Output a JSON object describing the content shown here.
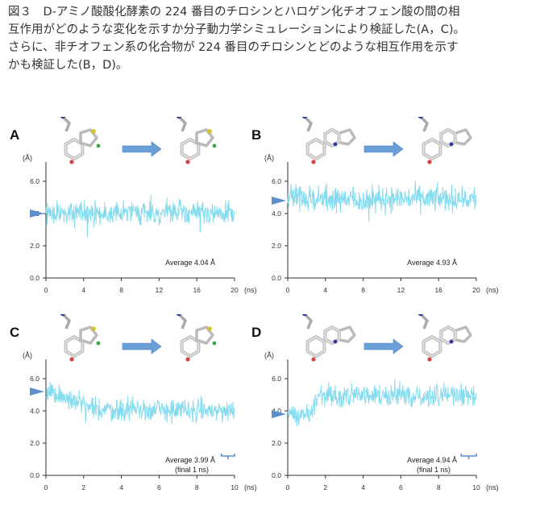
{
  "caption": {
    "lines": [
      "図３　D-アミノ酸酸化酵素の 224 番目のチロシンとハロゲン化チオフェン酸の間の相",
      "互作用がどのような変化を示すか分子動力学シミュレーションにより検証した(A，C)。",
      "さらに、非チオフェン系の化合物が 224 番目のチロシンとどのような相互作用を示す",
      "かも検証した(B，D)。"
    ]
  },
  "colors": {
    "trace": "#86dcef",
    "arrow": "#6a9fd8",
    "axis": "#333333",
    "marker": "#5b8fd0"
  },
  "chart_data": [
    {
      "type": "line",
      "panel": "A",
      "ylabel": "(Å)",
      "xlabel": "(ns)",
      "xlim": [
        0,
        20
      ],
      "ylim": [
        0,
        7.5
      ],
      "xticks": [
        "0",
        "4",
        "8",
        "12",
        "16",
        "20"
      ],
      "yticks": [
        "0.0",
        "2.0",
        "4.0",
        "6.0"
      ],
      "series": [
        {
          "mean": 4.04,
          "noise": 0.55
        }
      ],
      "marker_y": 4.0,
      "annotation": [
        "Average 4.04 Å"
      ]
    },
    {
      "type": "line",
      "panel": "B",
      "ylabel": "(Å)",
      "xlabel": "(ns)",
      "xlim": [
        0,
        20
      ],
      "ylim": [
        0,
        7.5
      ],
      "xticks": [
        "0",
        "4",
        "8",
        "12",
        "16",
        "20"
      ],
      "yticks": [
        "0.0",
        "2.0",
        "4.0",
        "6.0"
      ],
      "series": [
        {
          "mean": 4.93,
          "noise": 0.6
        }
      ],
      "marker_y": 4.8,
      "annotation": [
        "Average 4.93 Å"
      ]
    },
    {
      "type": "line",
      "panel": "C",
      "ylabel": "(Å)",
      "xlabel": "(ns)",
      "xlim": [
        0,
        10
      ],
      "ylim": [
        0,
        7.5
      ],
      "xticks": [
        "0",
        "2",
        "4",
        "6",
        "8",
        "10"
      ],
      "yticks": [
        "0.0",
        "2.0",
        "4.0",
        "6.0"
      ],
      "series": [
        {
          "segments": [
            [
              0,
              2,
              5.2,
              4.4
            ],
            [
              2,
              10,
              4.1,
              4.0
            ]
          ],
          "noise": 0.55
        }
      ],
      "marker_y": 5.2,
      "bracket": [
        9.3,
        10
      ],
      "annotation": [
        "Average 3.99 Å",
        "(final 1 ns)"
      ]
    },
    {
      "type": "line",
      "panel": "D",
      "ylabel": "(Å)",
      "xlabel": "(ns)",
      "xlim": [
        0,
        10
      ],
      "ylim": [
        0,
        7.5
      ],
      "xticks": [
        "0",
        "2",
        "4",
        "6",
        "8",
        "10"
      ],
      "yticks": [
        "0.0",
        "2.0",
        "4.0",
        "6.0"
      ],
      "series": [
        {
          "segments": [
            [
              0,
              1.3,
              3.8,
              3.9
            ],
            [
              1.3,
              1.7,
              4.1,
              5.0
            ],
            [
              1.7,
              10,
              5.0,
              4.95
            ]
          ],
          "noise": 0.5
        }
      ],
      "marker_y": 3.8,
      "bracket": [
        9.2,
        10
      ],
      "annotation": [
        "Average 4.94 Å",
        "(final 1 ns)"
      ]
    }
  ]
}
